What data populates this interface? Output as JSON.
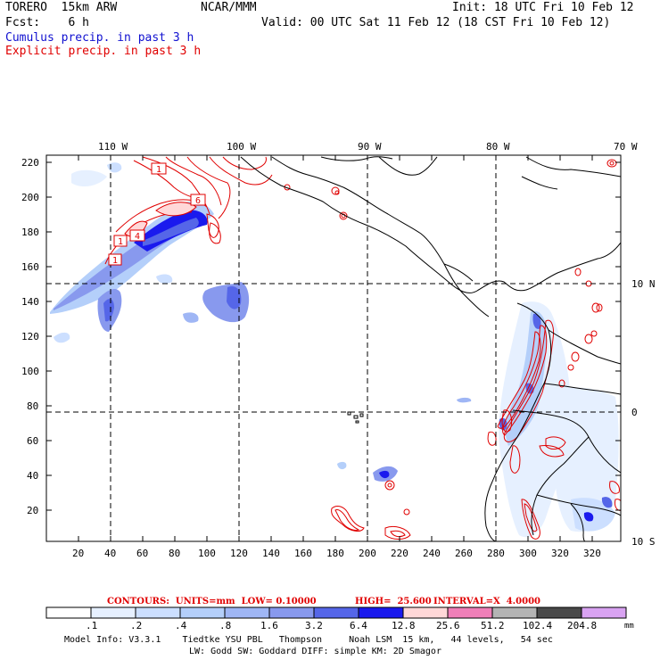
{
  "header": {
    "model": "TORERO  15km ARW",
    "org": "NCAR/MMM",
    "init": "Init: 18 UTC Fri 10 Feb 12",
    "fcst": "Fcst:    6 h",
    "valid": "Valid: 00 UTC Sat 11 Feb 12 (18 CST Fri 10 Feb 12)",
    "cumulus": "Cumulus precip. in past 3 h",
    "explicit": "Explicit precip. in past 3 h"
  },
  "map": {
    "top_lon_labels": [
      "110 W",
      "100 W",
      "90 W",
      "80 W",
      "70 W"
    ],
    "right_lat_labels": [
      "10 N",
      "0",
      "10 S"
    ],
    "x_ticks": [
      "20",
      "40",
      "60",
      "80",
      "100",
      "120",
      "140",
      "160",
      "180",
      "200",
      "220",
      "240",
      "260",
      "280",
      "300",
      "320"
    ],
    "y_ticks": [
      "20",
      "40",
      "60",
      "80",
      "100",
      "120",
      "140",
      "160",
      "180",
      "200",
      "220"
    ],
    "contour_box_labels": [
      "1",
      "6",
      "4",
      "1",
      "1"
    ]
  },
  "contour_info": {
    "contours": "CONTOURS:  UNITS=mm  LOW= 0.10000",
    "high": "HIGH=  25.600",
    "interval": "INTERVAL=X  4.0000"
  },
  "colorbar": {
    "values": [
      ".1",
      ".2",
      ".4",
      ".8",
      "1.6",
      "3.2",
      "6.4",
      "12.8",
      "25.6",
      "51.2",
      "102.4",
      "204.8"
    ],
    "unit": "mm",
    "colors": [
      "#ffffff",
      "#e6f0ff",
      "#ccdfff",
      "#b4cffa",
      "#9fb6f5",
      "#8899ee",
      "#5566e8",
      "#1a1aee",
      "#ffd8d8",
      "#f07fb8",
      "#b4b4b4",
      "#4a4a4a",
      "#d9a3f2"
    ]
  },
  "footer": {
    "line1": "Model Info: V3.3.1    Tiedtke YSU PBL   Thompson     Noah LSM  15 km,   44 levels,   54 sec",
    "line2": "LW: Godd SW: Goddard DIFF: simple KM: 2D Smagor"
  }
}
